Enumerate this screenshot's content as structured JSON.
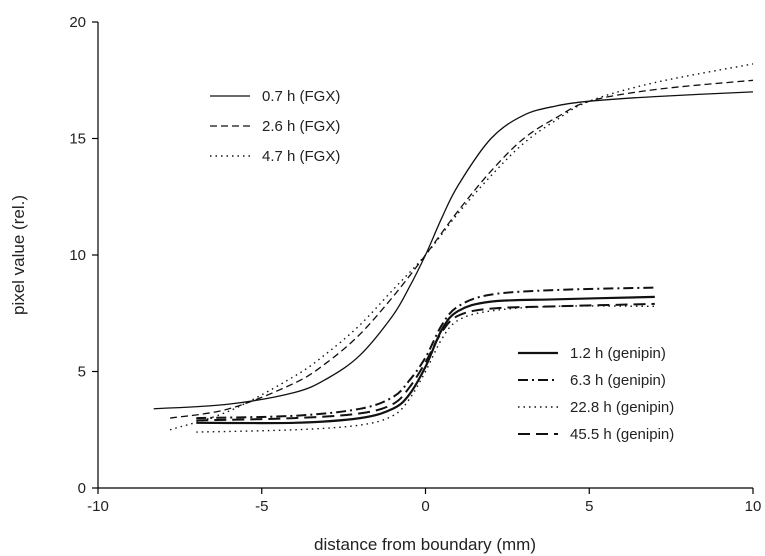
{
  "chart_data": {
    "type": "line",
    "title": "",
    "xlabel": "distance from boundary (mm)",
    "ylabel": "pixel value (rel.)",
    "xlim": [
      -10,
      10
    ],
    "ylim": [
      0,
      20
    ],
    "xticks": [
      -10,
      -5,
      0,
      5,
      10
    ],
    "yticks": [
      0,
      5,
      10,
      15,
      20
    ],
    "grid": false,
    "legends": [
      {
        "position": "upper-left",
        "entries": [
          "0.7 h (FGX)",
          "2.6 h (FGX)",
          "4.7 h (FGX)"
        ]
      },
      {
        "position": "lower-right",
        "entries": [
          "1.2 h (genipin)",
          "6.3 h (genipin)",
          "22.8 h (genipin)",
          "45.5 h (genipin)"
        ]
      }
    ],
    "series": [
      {
        "name": "0.7 h (FGX)",
        "style": "solid",
        "x": [
          -8.3,
          -6,
          -4,
          -3,
          -2,
          -1,
          -0.5,
          0,
          0.5,
          1,
          2,
          3,
          4,
          5,
          7,
          10
        ],
        "y": [
          3.4,
          3.6,
          4.1,
          4.7,
          5.7,
          7.4,
          8.6,
          10.0,
          11.6,
          13.0,
          15.0,
          16.0,
          16.4,
          16.6,
          16.8,
          17.0
        ]
      },
      {
        "name": "2.6 h (FGX)",
        "style": "dashed",
        "x": [
          -7.8,
          -6,
          -4,
          -3,
          -2,
          -1,
          0,
          1,
          2,
          3,
          4,
          5,
          7,
          10
        ],
        "y": [
          3.0,
          3.4,
          4.5,
          5.4,
          6.6,
          8.2,
          10.0,
          11.9,
          13.6,
          15.0,
          15.9,
          16.6,
          17.1,
          17.5
        ]
      },
      {
        "name": "4.7 h (FGX)",
        "style": "dotted",
        "x": [
          -7.8,
          -6,
          -4,
          -3,
          -2,
          -1,
          0,
          1,
          2,
          3,
          4,
          5,
          7,
          10
        ],
        "y": [
          2.5,
          3.3,
          4.8,
          5.8,
          7.0,
          8.5,
          10.0,
          11.8,
          13.4,
          14.8,
          15.8,
          16.6,
          17.4,
          18.2
        ]
      },
      {
        "name": "1.2 h (genipin)",
        "style": "solid-thick",
        "x": [
          -7,
          -4,
          -2,
          -1,
          -0.5,
          0,
          0.5,
          1,
          2,
          4,
          7
        ],
        "y": [
          2.8,
          2.8,
          3.0,
          3.4,
          4.0,
          5.2,
          6.8,
          7.6,
          8.0,
          8.1,
          8.2
        ]
      },
      {
        "name": "6.3 h (genipin)",
        "style": "dash-dot",
        "x": [
          -7,
          -4,
          -2,
          -1,
          -0.5,
          0,
          0.5,
          1,
          2,
          4,
          7
        ],
        "y": [
          3.0,
          3.1,
          3.4,
          3.9,
          4.6,
          5.6,
          7.0,
          7.8,
          8.3,
          8.5,
          8.6
        ]
      },
      {
        "name": "22.8 h (genipin)",
        "style": "dotted",
        "x": [
          -7,
          -4,
          -2,
          -1,
          -0.5,
          0,
          0.5,
          1,
          2,
          4,
          7
        ],
        "y": [
          2.4,
          2.5,
          2.7,
          3.1,
          3.8,
          5.0,
          6.4,
          7.2,
          7.6,
          7.8,
          7.8
        ]
      },
      {
        "name": "45.5 h (genipin)",
        "style": "long-dash",
        "x": [
          -7,
          -4,
          -2,
          -1,
          -0.5,
          0,
          0.5,
          1,
          2,
          4,
          7
        ],
        "y": [
          2.9,
          3.0,
          3.2,
          3.6,
          4.3,
          5.4,
          6.7,
          7.4,
          7.7,
          7.8,
          7.9
        ]
      }
    ]
  }
}
